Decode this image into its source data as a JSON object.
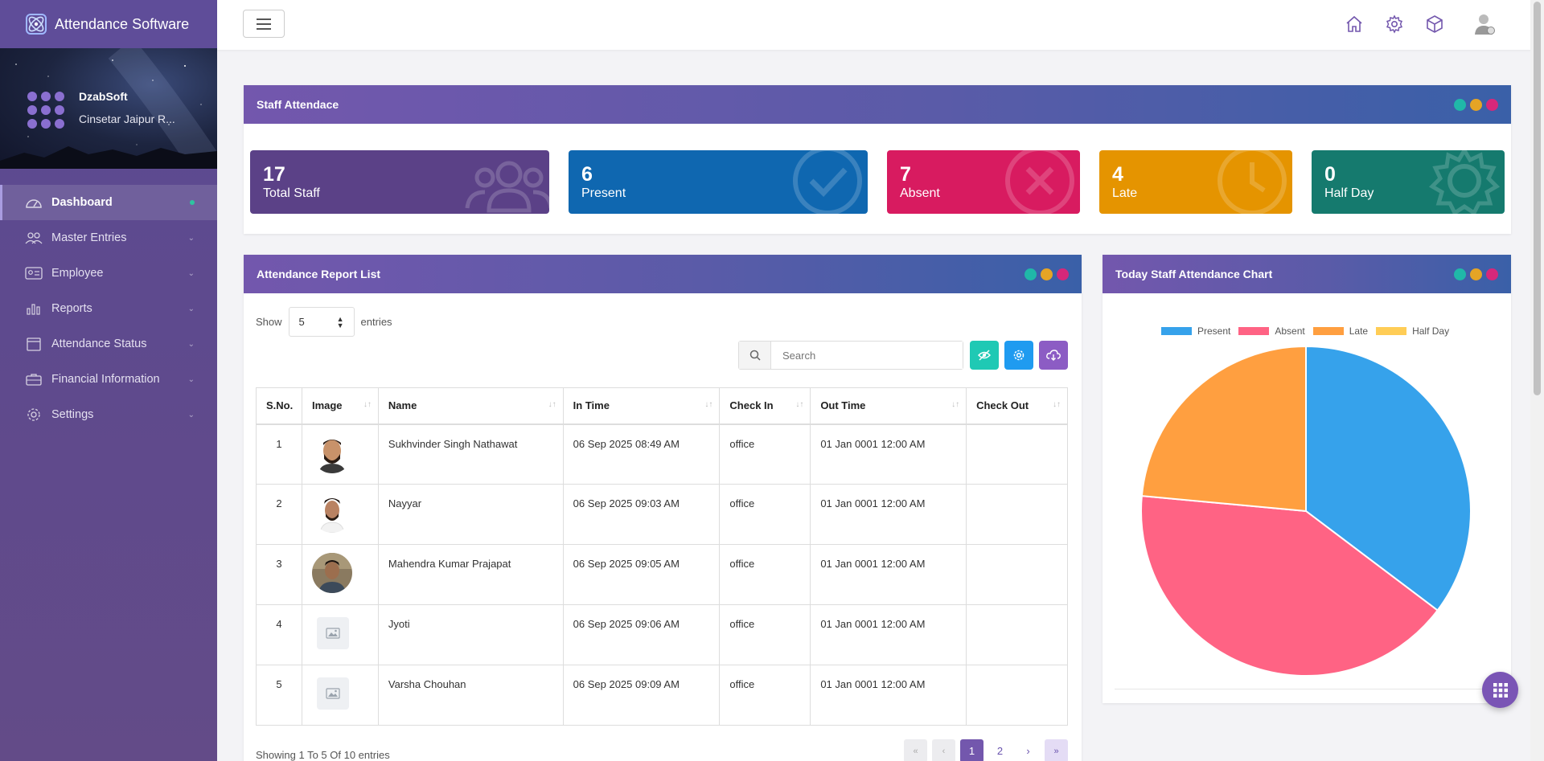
{
  "app": {
    "title": "Attendance Software"
  },
  "org": {
    "name": "DzabSoft",
    "address": "Cinsetar Jaipur R..."
  },
  "sidebar": {
    "items": [
      {
        "label": "Dashboard",
        "icon": "dashboard-icon",
        "active": true
      },
      {
        "label": "Master Entries",
        "icon": "users-icon"
      },
      {
        "label": "Employee",
        "icon": "id-card-icon"
      },
      {
        "label": "Reports",
        "icon": "bar-chart-icon"
      },
      {
        "label": "Attendance Status",
        "icon": "calendar-icon"
      },
      {
        "label": "Financial Information",
        "icon": "briefcase-icon"
      },
      {
        "label": "Settings",
        "icon": "gear-icon"
      }
    ]
  },
  "staff_panel": {
    "title": "Staff Attendace",
    "cards": [
      {
        "value": "17",
        "label": "Total Staff",
        "color": "#5b4187"
      },
      {
        "value": "6",
        "label": "Present",
        "color": "#0f67b0"
      },
      {
        "value": "7",
        "label": "Absent",
        "color": "#d81b60"
      },
      {
        "value": "4",
        "label": "Late",
        "color": "#e59400"
      },
      {
        "value": "0",
        "label": "Half Day",
        "color": "#157a6e"
      }
    ]
  },
  "report_panel": {
    "title": "Attendance Report List",
    "show_label": "Show",
    "entries_label": "entries",
    "page_size": "5",
    "search_placeholder": "Search",
    "columns": [
      "S.No.",
      "Image",
      "Name",
      "In Time",
      "Check In",
      "Out Time",
      "Check Out"
    ],
    "rows": [
      {
        "sno": "1",
        "name": "Sukhvinder Singh Nathawat",
        "in_time": "06 Sep 2025 08:49 AM",
        "check_in": "office",
        "out_time": "01 Jan 0001 12:00 AM",
        "check_out": ""
      },
      {
        "sno": "2",
        "name": "Nayyar",
        "in_time": "06 Sep 2025 09:03 AM",
        "check_in": "office",
        "out_time": "01 Jan 0001 12:00 AM",
        "check_out": ""
      },
      {
        "sno": "3",
        "name": "Mahendra Kumar Prajapat",
        "in_time": "06 Sep 2025 09:05 AM",
        "check_in": "office",
        "out_time": "01 Jan 0001 12:00 AM",
        "check_out": ""
      },
      {
        "sno": "4",
        "name": "Jyoti",
        "in_time": "06 Sep 2025 09:06 AM",
        "check_in": "office",
        "out_time": "01 Jan 0001 12:00 AM",
        "check_out": ""
      },
      {
        "sno": "5",
        "name": "Varsha Chouhan",
        "in_time": "06 Sep 2025 09:09 AM",
        "check_in": "office",
        "out_time": "01 Jan 0001 12:00 AM",
        "check_out": ""
      }
    ],
    "showing_text": "Showing 1 To 5 Of 10 entries",
    "pagination": {
      "first": "«",
      "prev": "‹",
      "pages": [
        "1",
        "2"
      ],
      "current": "1",
      "next": "›",
      "last": "»"
    }
  },
  "chart_panel": {
    "title": "Today Staff Attendance Chart"
  },
  "chart_data": {
    "type": "pie",
    "categories": [
      "Present",
      "Absent",
      "Late",
      "Half Day"
    ],
    "values": [
      6,
      7,
      4,
      0
    ],
    "colors": [
      "#36a2eb",
      "#ff6384",
      "#ff9f40",
      "#ffcd56"
    ],
    "legend_position": "top"
  }
}
